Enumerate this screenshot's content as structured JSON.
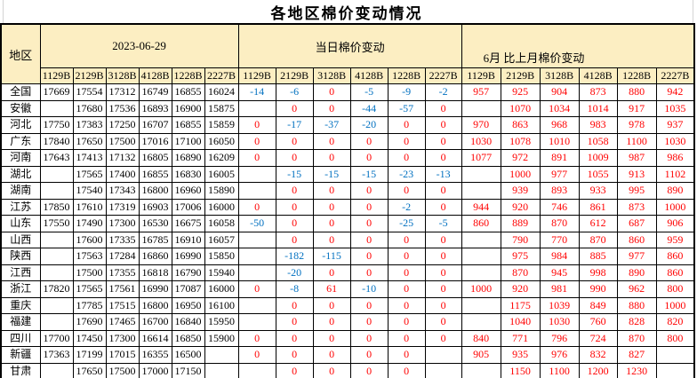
{
  "title": "各地区棉价变动情况",
  "colors": {
    "header_fill": "#FCEEC2",
    "negative_blue": "#0070C0",
    "red": "#FF0000",
    "border_black": "#000000",
    "gridline_gray": "#D4D4D4"
  },
  "chart_data": {
    "type": "table",
    "title": "各地区棉价变动情况",
    "region_column_header": "地区",
    "column_groups": [
      {
        "label": "2023-06-29",
        "columns": [
          "1129B",
          "2129B",
          "3128B",
          "4128B",
          "1228B",
          "2227B"
        ]
      },
      {
        "label": "当日棉价变动",
        "columns": [
          "1129B",
          "2129B",
          "3128B",
          "4128B",
          "1228B",
          "2227B"
        ]
      },
      {
        "label": "6月 比上月棉价变动",
        "columns": [
          "1129B",
          "2129B",
          "3128B",
          "4128B",
          "1228B",
          "2227B"
        ]
      }
    ],
    "rows": [
      {
        "region": "全国",
        "price_2023_06_29": [
          "17669",
          "17554",
          "17312",
          "16749",
          "16855",
          "16024"
        ],
        "daily_change": [
          "-14",
          "-6",
          "0",
          "-5",
          "-9",
          "-2"
        ],
        "monthly_change_june": [
          "957",
          "925",
          "904",
          "873",
          "880",
          "942"
        ]
      },
      {
        "region": "安徽",
        "price_2023_06_29": [
          "",
          "17680",
          "17536",
          "16893",
          "16900",
          "15875"
        ],
        "daily_change": [
          "",
          "0",
          "0",
          "-44",
          "-57",
          "0"
        ],
        "monthly_change_june": [
          "",
          "1070",
          "1034",
          "1014",
          "917",
          "1035"
        ]
      },
      {
        "region": "河北",
        "price_2023_06_29": [
          "17750",
          "17383",
          "17250",
          "16707",
          "16855",
          "15859"
        ],
        "daily_change": [
          "0",
          "-17",
          "-37",
          "-20",
          "0",
          "0"
        ],
        "monthly_change_june": [
          "970",
          "863",
          "968",
          "983",
          "978",
          "937"
        ]
      },
      {
        "region": "广东",
        "price_2023_06_29": [
          "17840",
          "17650",
          "17500",
          "17016",
          "17100",
          "16050"
        ],
        "daily_change": [
          "0",
          "0",
          "0",
          "0",
          "0",
          "0"
        ],
        "monthly_change_june": [
          "1030",
          "1078",
          "1010",
          "1058",
          "1100",
          "1030"
        ]
      },
      {
        "region": "河南",
        "price_2023_06_29": [
          "17643",
          "17413",
          "17132",
          "16805",
          "16890",
          "16209"
        ],
        "daily_change": [
          "0",
          "0",
          "0",
          "0",
          "0",
          "0"
        ],
        "monthly_change_june": [
          "1077",
          "972",
          "891",
          "1009",
          "987",
          "986"
        ]
      },
      {
        "region": "湖北",
        "price_2023_06_29": [
          "",
          "17565",
          "17400",
          "16855",
          "16830",
          "16005"
        ],
        "daily_change": [
          "",
          "-15",
          "-15",
          "-15",
          "-23",
          "-13"
        ],
        "monthly_change_june": [
          "",
          "1000",
          "977",
          "1055",
          "913",
          "1102"
        ]
      },
      {
        "region": "湖南",
        "price_2023_06_29": [
          "",
          "17540",
          "17343",
          "16800",
          "16960",
          "15890"
        ],
        "daily_change": [
          "",
          "0",
          "0",
          "0",
          "0",
          "0"
        ],
        "monthly_change_june": [
          "",
          "939",
          "893",
          "933",
          "995",
          "890"
        ]
      },
      {
        "region": "江苏",
        "price_2023_06_29": [
          "17850",
          "17610",
          "17319",
          "16903",
          "17006",
          "16000"
        ],
        "daily_change": [
          "0",
          "0",
          "0",
          "0",
          "-2",
          "0"
        ],
        "monthly_change_june": [
          "944",
          "920",
          "746",
          "861",
          "873",
          "1000"
        ]
      },
      {
        "region": "山东",
        "price_2023_06_29": [
          "17550",
          "17490",
          "17300",
          "16530",
          "16675",
          "16058"
        ],
        "daily_change": [
          "-50",
          "0",
          "0",
          "0",
          "-25",
          "-5"
        ],
        "monthly_change_june": [
          "860",
          "889",
          "870",
          "612",
          "687",
          "906"
        ]
      },
      {
        "region": "山西",
        "price_2023_06_29": [
          "",
          "17600",
          "17335",
          "16785",
          "16910",
          "16057"
        ],
        "daily_change": [
          "",
          "0",
          "0",
          "0",
          "0",
          "0"
        ],
        "monthly_change_june": [
          "",
          "790",
          "770",
          "870",
          "860",
          "959"
        ]
      },
      {
        "region": "陕西",
        "price_2023_06_29": [
          "",
          "17563",
          "17284",
          "16860",
          "16990",
          "15850"
        ],
        "daily_change": [
          "",
          "-182",
          "-115",
          "0",
          "0",
          "0"
        ],
        "monthly_change_june": [
          "",
          "975",
          "984",
          "885",
          "977",
          "860"
        ]
      },
      {
        "region": "江西",
        "price_2023_06_29": [
          "",
          "17500",
          "17355",
          "16818",
          "16790",
          "15940"
        ],
        "daily_change": [
          "",
          "-20",
          "0",
          "0",
          "0",
          "0"
        ],
        "monthly_change_june": [
          "",
          "870",
          "945",
          "998",
          "890",
          "860"
        ]
      },
      {
        "region": "浙江",
        "price_2023_06_29": [
          "17820",
          "17565",
          "17561",
          "16990",
          "17087",
          "16000"
        ],
        "daily_change": [
          "0",
          "-8",
          "61",
          "-10",
          "0",
          "0"
        ],
        "monthly_change_june": [
          "1000",
          "920",
          "981",
          "990",
          "962",
          "800"
        ]
      },
      {
        "region": "重庆",
        "price_2023_06_29": [
          "",
          "17785",
          "17515",
          "16800",
          "16950",
          "16100"
        ],
        "daily_change": [
          "",
          "0",
          "0",
          "0",
          "0",
          "0"
        ],
        "monthly_change_june": [
          "",
          "1175",
          "1039",
          "849",
          "880",
          "1000"
        ]
      },
      {
        "region": "福建",
        "price_2023_06_29": [
          "",
          "17690",
          "17465",
          "16700",
          "16840",
          "15950"
        ],
        "daily_change": [
          "",
          "0",
          "0",
          "0",
          "0",
          "0"
        ],
        "monthly_change_june": [
          "",
          "1040",
          "1030",
          "760",
          "828",
          "820"
        ]
      },
      {
        "region": "四川",
        "price_2023_06_29": [
          "17700",
          "17450",
          "17300",
          "16614",
          "16850",
          "15900"
        ],
        "daily_change": [
          "0",
          "0",
          "0",
          "0",
          "0",
          "0"
        ],
        "monthly_change_june": [
          "840",
          "771",
          "796",
          "724",
          "870",
          "800"
        ]
      },
      {
        "region": "新疆",
        "price_2023_06_29": [
          "17363",
          "17199",
          "17015",
          "16355",
          "16500",
          ""
        ],
        "daily_change": [
          "0",
          "0",
          "0",
          "0",
          "0",
          ""
        ],
        "monthly_change_june": [
          "905",
          "935",
          "976",
          "832",
          "827",
          ""
        ]
      },
      {
        "region": "甘肃",
        "price_2023_06_29": [
          "",
          "17650",
          "17500",
          "17000",
          "17150",
          ""
        ],
        "daily_change": [
          "",
          "0",
          "0",
          "0",
          "0",
          ""
        ],
        "monthly_change_june": [
          "",
          "1150",
          "1100",
          "1200",
          "1230",
          ""
        ]
      }
    ]
  }
}
